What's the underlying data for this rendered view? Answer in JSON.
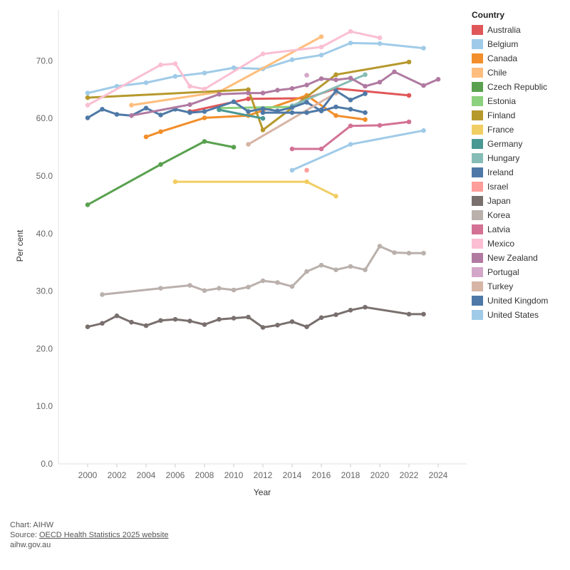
{
  "chart_data": {
    "type": "line",
    "xlabel": "Year",
    "ylabel": "Per cent",
    "xlim": [
      1998,
      2026
    ],
    "ylim": [
      0,
      75
    ],
    "x_ticks": [
      "2000",
      "2002",
      "2004",
      "2006",
      "2008",
      "2010",
      "2012",
      "2014",
      "2016",
      "2018",
      "2020",
      "2022",
      "2024"
    ],
    "y_ticks": [
      "0.0",
      "10.0",
      "20.0",
      "30.0",
      "40.0",
      "50.0",
      "60.0",
      "70.0"
    ],
    "legend_title": "Country",
    "series": [
      {
        "name": "Australia",
        "color": "#e05759",
        "points": [
          [
            2007,
            61.2
          ],
          [
            2011,
            63.4
          ],
          [
            2015,
            63.5
          ],
          [
            2017,
            65.2
          ],
          [
            2022,
            64.0
          ]
        ]
      },
      {
        "name": "Belgium",
        "color": "#a0cbe8",
        "points": [
          [
            2000,
            64.4
          ],
          [
            2002,
            65.6
          ],
          [
            2004,
            66.2
          ],
          [
            2006,
            67.3
          ],
          [
            2008,
            67.9
          ],
          [
            2010,
            68.8
          ],
          [
            2012,
            68.6
          ],
          [
            2014,
            70.2
          ],
          [
            2016,
            71.0
          ],
          [
            2018,
            73.1
          ],
          [
            2020,
            73.0
          ],
          [
            2023,
            72.2
          ]
        ]
      },
      {
        "name": "Canada",
        "color": "#f28e2b",
        "points": [
          [
            2004,
            56.8
          ],
          [
            2005,
            57.7
          ],
          [
            2008,
            60.1
          ],
          [
            2011,
            60.5
          ],
          [
            2015,
            64.0
          ],
          [
            2017,
            60.5
          ],
          [
            2019,
            59.8
          ]
        ]
      },
      {
        "name": "Chile",
        "color": "#ffbe7d",
        "points": [
          [
            2003,
            62.3
          ],
          [
            2009,
            64.6
          ],
          [
            2016,
            74.2
          ]
        ]
      },
      {
        "name": "Czech Republic",
        "color": "#59a14f",
        "points": [
          [
            2000,
            45.0
          ],
          [
            2005,
            52.0
          ],
          [
            2008,
            56.0
          ],
          [
            2010,
            55.0
          ]
        ]
      },
      {
        "name": "Estonia",
        "color": "#8cd17d",
        "points": [
          [
            2009,
            61.8
          ],
          [
            2014,
            62.0
          ]
        ]
      },
      {
        "name": "Finland",
        "color": "#b6992d",
        "points": [
          [
            2000,
            63.6
          ],
          [
            2011,
            65.0
          ],
          [
            2012,
            58.0
          ],
          [
            2017,
            67.6
          ],
          [
            2022,
            69.8
          ]
        ]
      },
      {
        "name": "France",
        "color": "#f1ce63",
        "points": [
          [
            2006,
            49.0
          ],
          [
            2015,
            49.0
          ],
          [
            2017,
            46.5
          ]
        ]
      },
      {
        "name": "Germany",
        "color": "#499894",
        "points": [
          [
            2009,
            61.5
          ],
          [
            2012,
            60.0
          ]
        ]
      },
      {
        "name": "Hungary",
        "color": "#86bcb6",
        "points": [
          [
            2014,
            62.2
          ],
          [
            2019,
            67.6
          ]
        ]
      },
      {
        "name": "Ireland",
        "color": "#4e79a7",
        "points": [
          [
            2000,
            60.1
          ],
          [
            2001,
            61.6
          ],
          [
            2002,
            60.7
          ],
          [
            2003,
            60.5
          ],
          [
            2004,
            61.8
          ],
          [
            2005,
            60.6
          ],
          [
            2006,
            61.6
          ],
          [
            2007,
            61.0
          ],
          [
            2008,
            61.2
          ],
          [
            2010,
            62.9
          ],
          [
            2011,
            61.2
          ],
          [
            2012,
            61.7
          ],
          [
            2013,
            61.3
          ],
          [
            2014,
            61.9
          ],
          [
            2015,
            62.8
          ],
          [
            2016,
            61.3
          ],
          [
            2017,
            62.0
          ],
          [
            2018,
            61.6
          ],
          [
            2019,
            61.0
          ]
        ]
      },
      {
        "name": "Israel",
        "color": "#ff9d9a",
        "points": [
          [
            2015,
            51.0
          ]
        ]
      },
      {
        "name": "Japan",
        "color": "#79706e",
        "points": [
          [
            2000,
            23.8
          ],
          [
            2001,
            24.4
          ],
          [
            2002,
            25.7
          ],
          [
            2003,
            24.6
          ],
          [
            2004,
            24.0
          ],
          [
            2005,
            24.9
          ],
          [
            2006,
            25.1
          ],
          [
            2007,
            24.8
          ],
          [
            2008,
            24.2
          ],
          [
            2009,
            25.1
          ],
          [
            2010,
            25.3
          ],
          [
            2011,
            25.5
          ],
          [
            2012,
            23.7
          ],
          [
            2013,
            24.1
          ],
          [
            2014,
            24.7
          ],
          [
            2015,
            23.8
          ],
          [
            2016,
            25.4
          ],
          [
            2017,
            25.9
          ],
          [
            2018,
            26.7
          ],
          [
            2019,
            27.2
          ],
          [
            2022,
            26.0
          ],
          [
            2023,
            26.0
          ]
        ]
      },
      {
        "name": "Korea",
        "color": "#bab0ac",
        "points": [
          [
            2001,
            29.4
          ],
          [
            2005,
            30.5
          ],
          [
            2007,
            31.0
          ],
          [
            2008,
            30.1
          ],
          [
            2009,
            30.5
          ],
          [
            2010,
            30.2
          ],
          [
            2011,
            30.7
          ],
          [
            2012,
            31.8
          ],
          [
            2013,
            31.5
          ],
          [
            2014,
            30.8
          ],
          [
            2015,
            33.4
          ],
          [
            2016,
            34.5
          ],
          [
            2017,
            33.7
          ],
          [
            2018,
            34.3
          ],
          [
            2019,
            33.7
          ],
          [
            2020,
            37.8
          ],
          [
            2021,
            36.7
          ],
          [
            2022,
            36.6
          ],
          [
            2023,
            36.6
          ]
        ]
      },
      {
        "name": "Latvia",
        "color": "#d37295",
        "points": [
          [
            2014,
            54.7
          ],
          [
            2016,
            54.7
          ],
          [
            2018,
            58.7
          ],
          [
            2020,
            58.8
          ],
          [
            2022,
            59.4
          ]
        ]
      },
      {
        "name": "Mexico",
        "color": "#fabfd2",
        "points": [
          [
            2000,
            62.3
          ],
          [
            2005,
            69.3
          ],
          [
            2006,
            69.5
          ],
          [
            2007,
            65.6
          ],
          [
            2008,
            65.1
          ],
          [
            2012,
            71.2
          ],
          [
            2016,
            72.4
          ],
          [
            2018,
            75.1
          ],
          [
            2020,
            74.0
          ]
        ]
      },
      {
        "name": "New Zealand",
        "color": "#b07aa1",
        "points": [
          [
            2003,
            60.5
          ],
          [
            2007,
            62.4
          ],
          [
            2009,
            64.2
          ],
          [
            2011,
            64.4
          ],
          [
            2012,
            64.4
          ],
          [
            2013,
            64.9
          ],
          [
            2014,
            65.2
          ],
          [
            2015,
            65.8
          ],
          [
            2016,
            66.9
          ],
          [
            2017,
            66.7
          ],
          [
            2018,
            67.0
          ],
          [
            2019,
            65.6
          ],
          [
            2020,
            66.3
          ],
          [
            2021,
            68.1
          ],
          [
            2023,
            65.7
          ],
          [
            2024,
            66.8
          ]
        ]
      },
      {
        "name": "Portugal",
        "color": "#d4a6c8",
        "points": [
          [
            2015,
            67.5
          ]
        ]
      },
      {
        "name": "Turkey",
        "color": "#d7b5a6",
        "points": [
          [
            2011,
            55.5
          ],
          [
            2017,
            64.4
          ]
        ]
      },
      {
        "name": "United Kingdom",
        "color": "#4e79a7",
        "points": [
          [
            2012,
            61.0
          ],
          [
            2014,
            61.0
          ],
          [
            2015,
            61.0
          ],
          [
            2016,
            61.5
          ],
          [
            2017,
            64.8
          ],
          [
            2018,
            63.2
          ],
          [
            2019,
            64.3
          ]
        ]
      },
      {
        "name": "United States",
        "color": "#a0cbe8",
        "points": [
          [
            2014,
            51.0
          ],
          [
            2018,
            55.5
          ],
          [
            2023,
            57.9
          ]
        ]
      }
    ]
  },
  "footer": {
    "chart_credit": "Chart: AIHW",
    "source_prefix": "Source: ",
    "source_link": "OECD Health Statistics 2025 website",
    "site": "aihw.gov.au"
  }
}
